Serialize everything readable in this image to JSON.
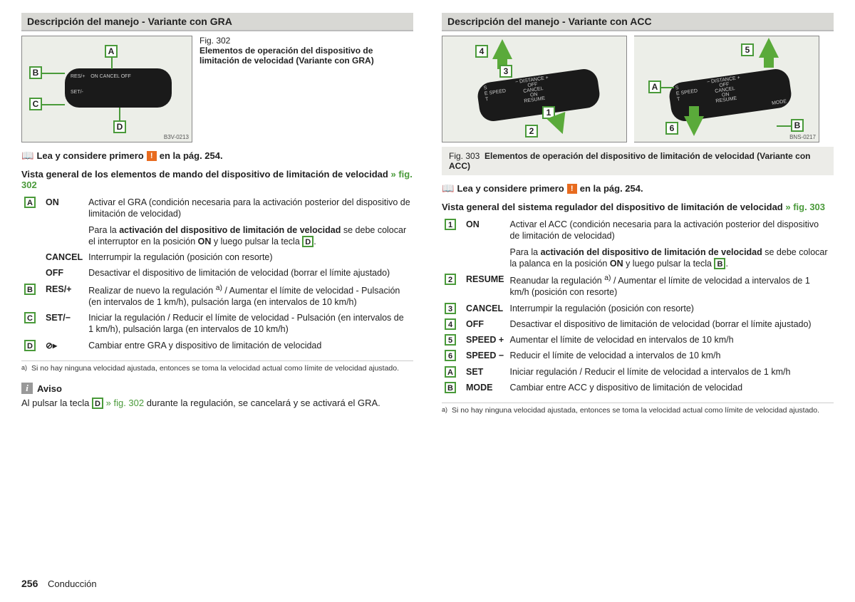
{
  "left": {
    "header": "Descripción del manejo - Variante con GRA",
    "fig": {
      "number": "Fig. 302",
      "caption": "Elementos de operación del dispositivo de limitación de velocidad (Variante con GRA)",
      "code": "B3V-0213",
      "callouts": [
        "A",
        "B",
        "C",
        "D"
      ],
      "stalk_labels": "RES/+    ON CANCEL OFF\n\nSET/-"
    },
    "readfirst_prefix": "Lea y considere primero",
    "readfirst_suffix": "en la pág. 254.",
    "subhead": "Vista general de los elementos de mando del dispositivo de limitación de velocidad",
    "subhead_ref": "» fig. 302",
    "items": [
      {
        "key": "A",
        "label": "ON",
        "text": "Activar el GRA (condición necesaria para la activación posterior del dispositivo de limitación de velocidad)"
      },
      {
        "key": "",
        "label": "",
        "text": "Para la <b>activación del dispositivo de limitación de velocidad</b> se debe colocar el interruptor en la posición <span class='narrow'>ON</span> y luego pulsar la tecla <span class='key'>D</span>."
      },
      {
        "key": "",
        "label": "CANCEL",
        "text": "Interrumpir la regulación (posición con resorte)"
      },
      {
        "key": "",
        "label": "OFF",
        "text": "Desactivar el dispositivo de limitación de velocidad (borrar el límite ajustado)"
      },
      {
        "key": "B",
        "label": "RES/+",
        "text": "Realizar de nuevo la regulación <sup>a)</sup> / Aumentar el límite de velocidad - Pulsación (en intervalos de 1 km/h), pulsación larga (en intervalos de 10 km/h)"
      },
      {
        "key": "C",
        "label": "SET/−",
        "text": "Iniciar la regulación / Reducir el límite de velocidad - Pulsación (en intervalos de 1 km/h), pulsación larga (en intervalos de 10 km/h)"
      },
      {
        "key": "D",
        "label": "__ICON__",
        "text": "Cambiar entre GRA y dispositivo de limitación de velocidad"
      }
    ],
    "footnote_mark": "a)",
    "footnote": "Si no hay ninguna velocidad ajustada, entonces se toma la velocidad actual como límite de velocidad ajustado.",
    "note_title": "Aviso",
    "note_body": "Al pulsar la tecla <span class='key'>D</span> <span class='fig-ref'>» fig. 302</span> durante la regulación, se cancelará y se activará el GRA."
  },
  "right": {
    "header": "Descripción del manejo - Variante con ACC",
    "fig": {
      "number": "Fig. 303",
      "caption": "Elementos de operación del dispositivo de limitación de velocidad (Variante con ACC)",
      "code": "BNS-0217",
      "stalk_lines": [
        "− DISTANCE +",
        "OFF",
        "CANCEL",
        "ON",
        "RESUME"
      ],
      "stalk_side": "S\nE SPEED\nT",
      "mode": "MODE"
    },
    "readfirst_prefix": "Lea y considere primero",
    "readfirst_suffix": "en la pág. 254.",
    "subhead": "Vista general del sistema regulador del dispositivo de limitación de velocidad",
    "subhead_ref": "» fig. 303",
    "items": [
      {
        "key": "1",
        "label": "ON",
        "text": "Activar el ACC (condición necesaria para la activación posterior del dispositivo de limitación de velocidad)"
      },
      {
        "key": "",
        "label": "",
        "text": "Para la <b>activación del dispositivo de limitación de velocidad</b> se debe colocar la palanca en la posición <span class='narrow'>ON</span> y luego pulsar la tecla <span class='key'>B</span>."
      },
      {
        "key": "2",
        "label": "RESUME",
        "text": "Reanudar la regulación <sup>a)</sup> / Aumentar el límite de velocidad a intervalos de 1 km/h (posición con resorte)"
      },
      {
        "key": "3",
        "label": "CANCEL",
        "text": "Interrumpir la regulación (posición con resorte)"
      },
      {
        "key": "4",
        "label": "OFF",
        "text": "Desactivar el dispositivo de limitación de velocidad (borrar el límite ajustado)"
      },
      {
        "key": "5",
        "label": "SPEED +",
        "text": "Aumentar el límite de velocidad en intervalos de 10 km/h"
      },
      {
        "key": "6",
        "label": "SPEED −",
        "text": "Reducir el límite de velocidad a intervalos de 10 km/h"
      },
      {
        "key": "A",
        "label": "SET",
        "text": "Iniciar regulación / Reducir el límite de velocidad a intervalos de 1 km/h"
      },
      {
        "key": "B",
        "label": "MODE",
        "text": "Cambiar entre ACC y dispositivo de limitación de velocidad"
      }
    ],
    "footnote_mark": "a)",
    "footnote": "Si no hay ninguna velocidad ajustada, entonces se toma la velocidad actual como límite de velocidad ajustado."
  },
  "footer": {
    "page": "256",
    "section": "Conducción"
  }
}
